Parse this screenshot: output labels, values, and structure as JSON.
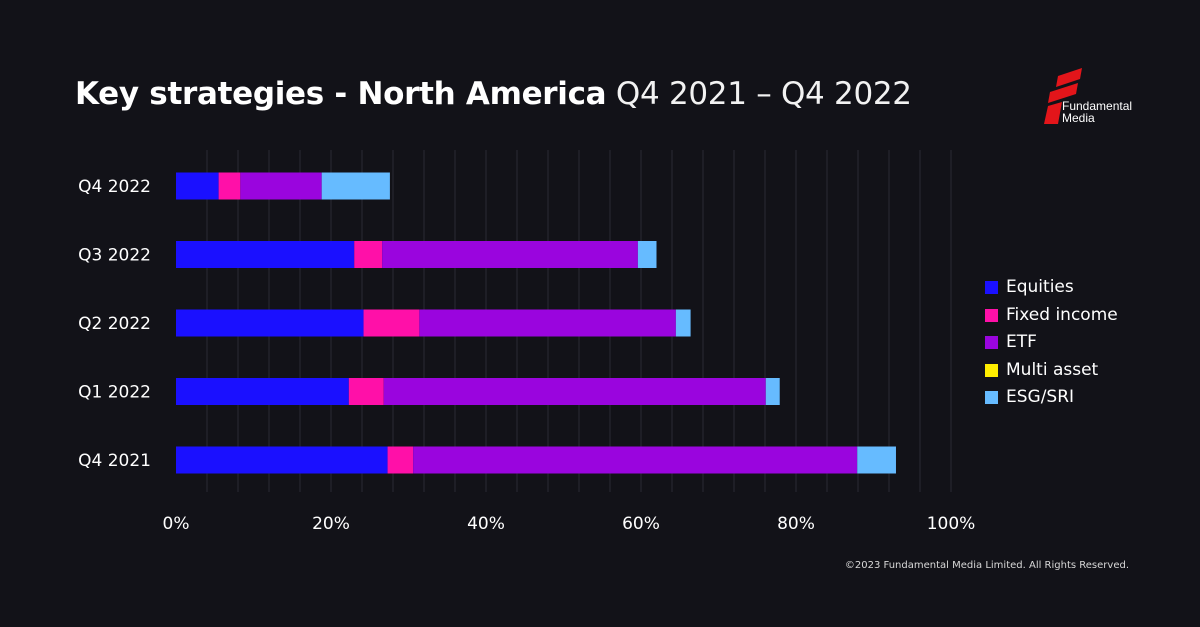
{
  "header": {
    "title_bold": "Key strategies - North America",
    "title_light": "Q4 2021 – Q4 2022"
  },
  "logo": {
    "line1": "Fundamental",
    "line2": "Media",
    "color": "#e3151a"
  },
  "footer": {
    "copyright": "©2023 Fundamental Media Limited. All Rights Reserved."
  },
  "chart_data": {
    "type": "bar",
    "orientation": "horizontal",
    "stacked": true,
    "categories": [
      "Q4 2022",
      "Q3 2022",
      "Q2 2022",
      "Q1 2022",
      "Q4 2021"
    ],
    "series": [
      {
        "name": "Equities",
        "color": "#1a10ff",
        "values": [
          5.5,
          23.0,
          24.2,
          22.3,
          27.3
        ]
      },
      {
        "name": "Fixed income",
        "color": "#ff10a8",
        "values": [
          2.8,
          3.6,
          7.2,
          4.5,
          3.3
        ]
      },
      {
        "name": "ETF",
        "color": "#9a05de",
        "values": [
          10.5,
          33.0,
          33.1,
          49.3,
          57.3
        ]
      },
      {
        "name": "Multi asset",
        "color": "#ffee00",
        "values": [
          0,
          0,
          0,
          0,
          0
        ]
      },
      {
        "name": "ESG/SRI",
        "color": "#66bbff",
        "values": [
          8.8,
          2.4,
          1.9,
          1.8,
          5.0
        ]
      }
    ],
    "xlim": [
      0,
      100
    ],
    "xticks": [
      "0%",
      "20%",
      "40%",
      "60%",
      "80%",
      "100%"
    ],
    "grid": true,
    "legend_position": "right"
  }
}
